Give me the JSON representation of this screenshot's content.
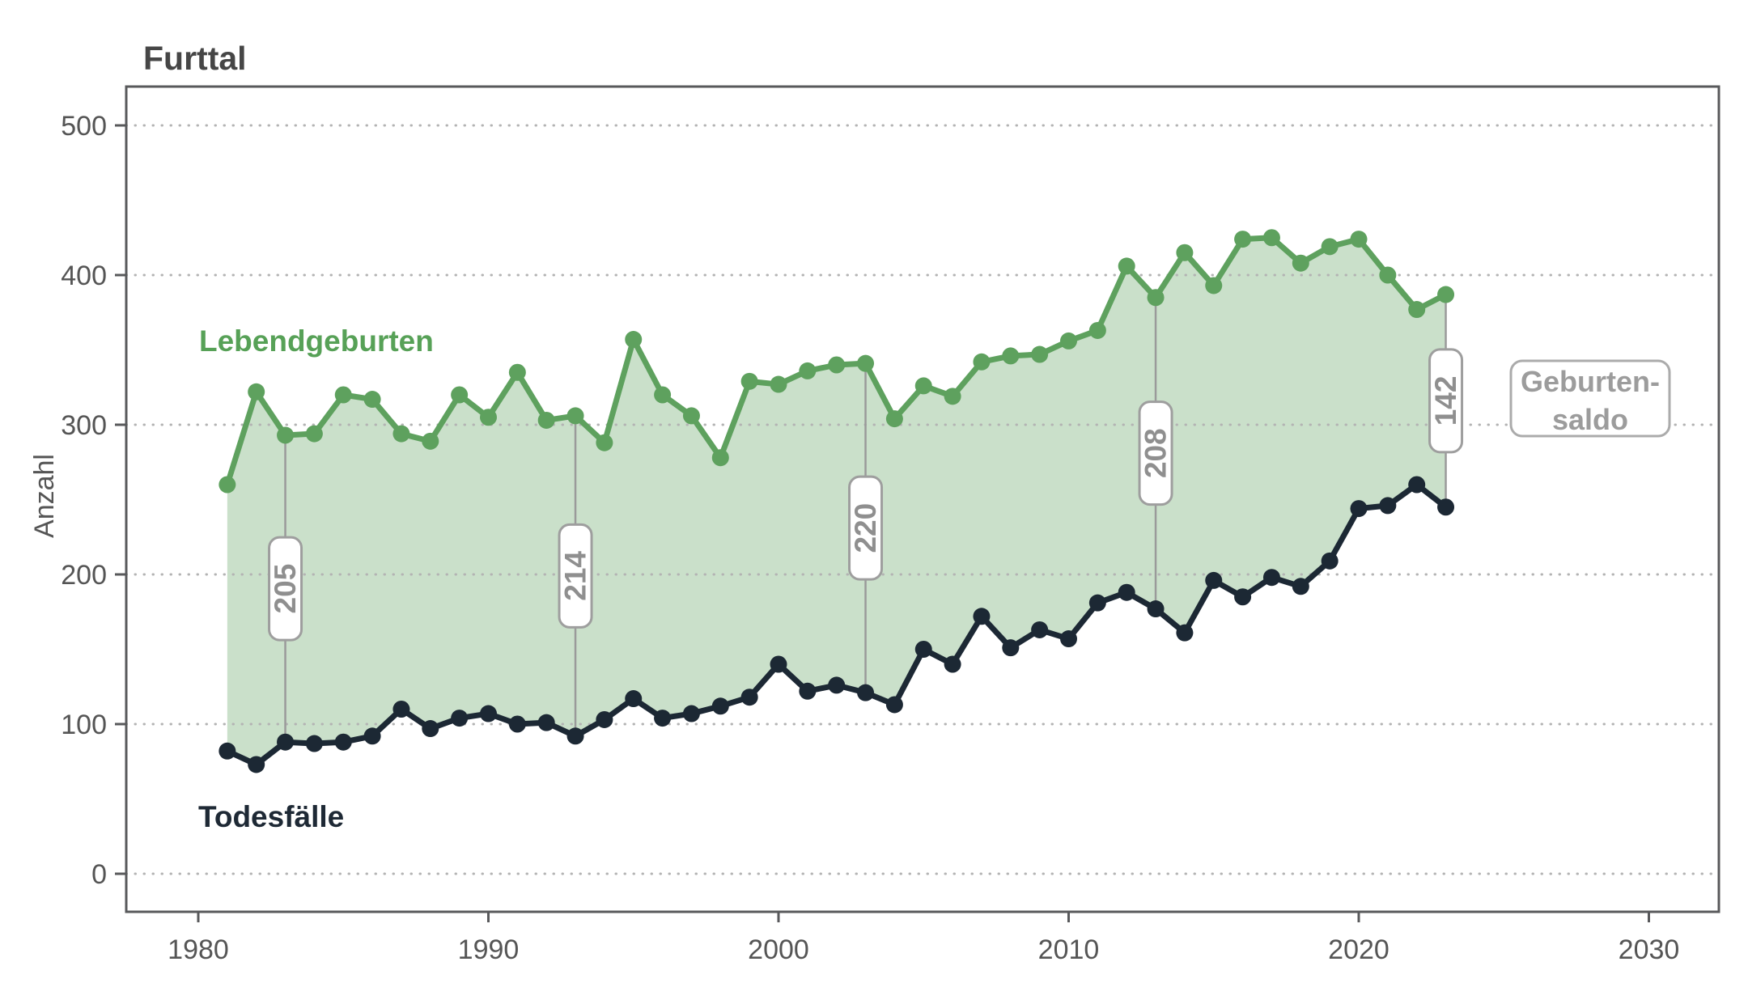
{
  "title": "Furttal",
  "y_axis": {
    "label": "Anzahl",
    "ticks": [
      0,
      100,
      200,
      300,
      400,
      500
    ]
  },
  "x_axis": {
    "ticks": [
      1980,
      1990,
      2000,
      2010,
      2020,
      2030
    ]
  },
  "series_labels": {
    "births": "Lebendgeburten",
    "deaths": "Todesfälle"
  },
  "legend": {
    "line1": "Geburten-",
    "line2": "saldo"
  },
  "colors": {
    "births_line": "#5ea15e",
    "deaths_line": "#1c2834",
    "area_fill": "rgba(90,160,90,0.32)",
    "gridline": "#b3b3b3",
    "frame": "#58595b",
    "axis_text": "#555555",
    "title_text": "#464646",
    "callout_border": "#9e9e9e",
    "callout_text": "#8f8f8f",
    "connector": "#9a9a9a"
  },
  "chart_data": {
    "type": "line",
    "title": "Furttal",
    "xlabel": "",
    "ylabel": "Anzahl",
    "x": [
      1981,
      1982,
      1983,
      1984,
      1985,
      1986,
      1987,
      1988,
      1989,
      1990,
      1991,
      1992,
      1993,
      1994,
      1995,
      1996,
      1997,
      1998,
      1999,
      2000,
      2001,
      2002,
      2003,
      2004,
      2005,
      2006,
      2007,
      2008,
      2009,
      2010,
      2011,
      2012,
      2013,
      2014,
      2015,
      2016,
      2017,
      2018,
      2019,
      2020,
      2021,
      2022,
      2023
    ],
    "series": [
      {
        "name": "Lebendgeburten",
        "values": [
          260,
          322,
          293,
          294,
          320,
          317,
          294,
          289,
          320,
          305,
          335,
          303,
          306,
          288,
          357,
          320,
          306,
          278,
          329,
          327,
          336,
          340,
          341,
          304,
          326,
          319,
          342,
          346,
          347,
          356,
          363,
          406,
          385,
          415,
          393,
          424,
          425,
          408,
          419,
          424,
          400,
          377,
          387
        ]
      },
      {
        "name": "Todesfälle",
        "values": [
          82,
          73,
          88,
          87,
          88,
          92,
          110,
          97,
          104,
          107,
          100,
          101,
          92,
          103,
          117,
          104,
          107,
          112,
          118,
          140,
          122,
          126,
          121,
          113,
          150,
          140,
          172,
          151,
          163,
          157,
          181,
          188,
          177,
          161,
          196,
          185,
          198,
          192,
          209,
          244,
          246,
          260,
          245
        ]
      }
    ],
    "area_between_series": "Geburten-saldo",
    "callouts": [
      {
        "year": 1983,
        "label": "205"
      },
      {
        "year": 1993,
        "label": "214"
      },
      {
        "year": 2003,
        "label": "220"
      },
      {
        "year": 2013,
        "label": "208"
      },
      {
        "year": 2023,
        "label": "142"
      }
    ],
    "xlim": [
      1977.5,
      2032.5
    ],
    "ylim": [
      -25,
      526
    ],
    "grid": "dotted horizontal at every 100"
  }
}
